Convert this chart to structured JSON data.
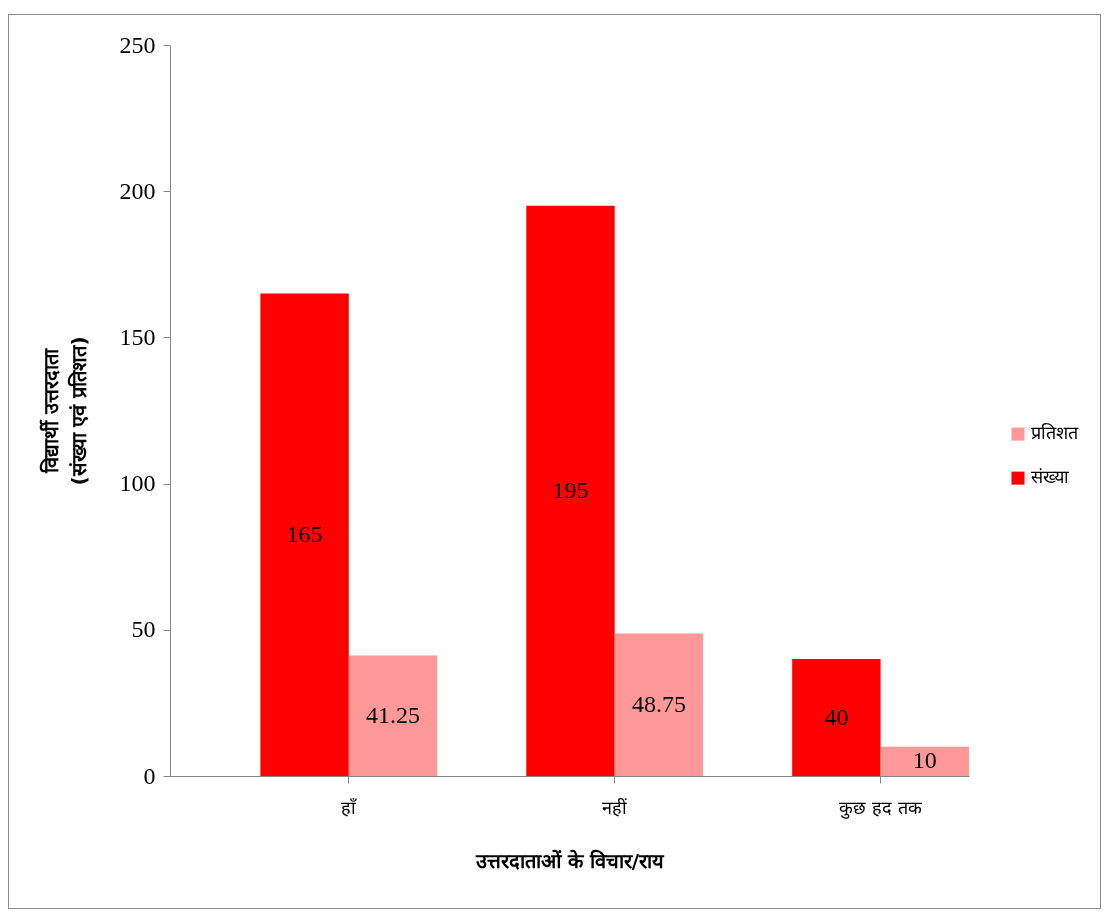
{
  "chart_data": {
    "type": "bar",
    "xlabel": "उत्तरदाताओं के विचार/राय",
    "ylabel": "विद्यार्थी उत्तरदाता\n(संख्या एवं प्रतिशत)",
    "categories": [
      "हाँ",
      "नहीं",
      "कुछ हद तक"
    ],
    "series": [
      {
        "name": "संख्या",
        "color": "#ff0000",
        "values": [
          165,
          195,
          40
        ]
      },
      {
        "name": "प्रतिशत",
        "color": "#ff9999",
        "values": [
          41.25,
          48.75,
          10
        ]
      }
    ],
    "ylim": [
      0,
      250
    ],
    "yticks": [
      0,
      50,
      100,
      150,
      200,
      250
    ],
    "data_labels": true,
    "legend": "right"
  }
}
